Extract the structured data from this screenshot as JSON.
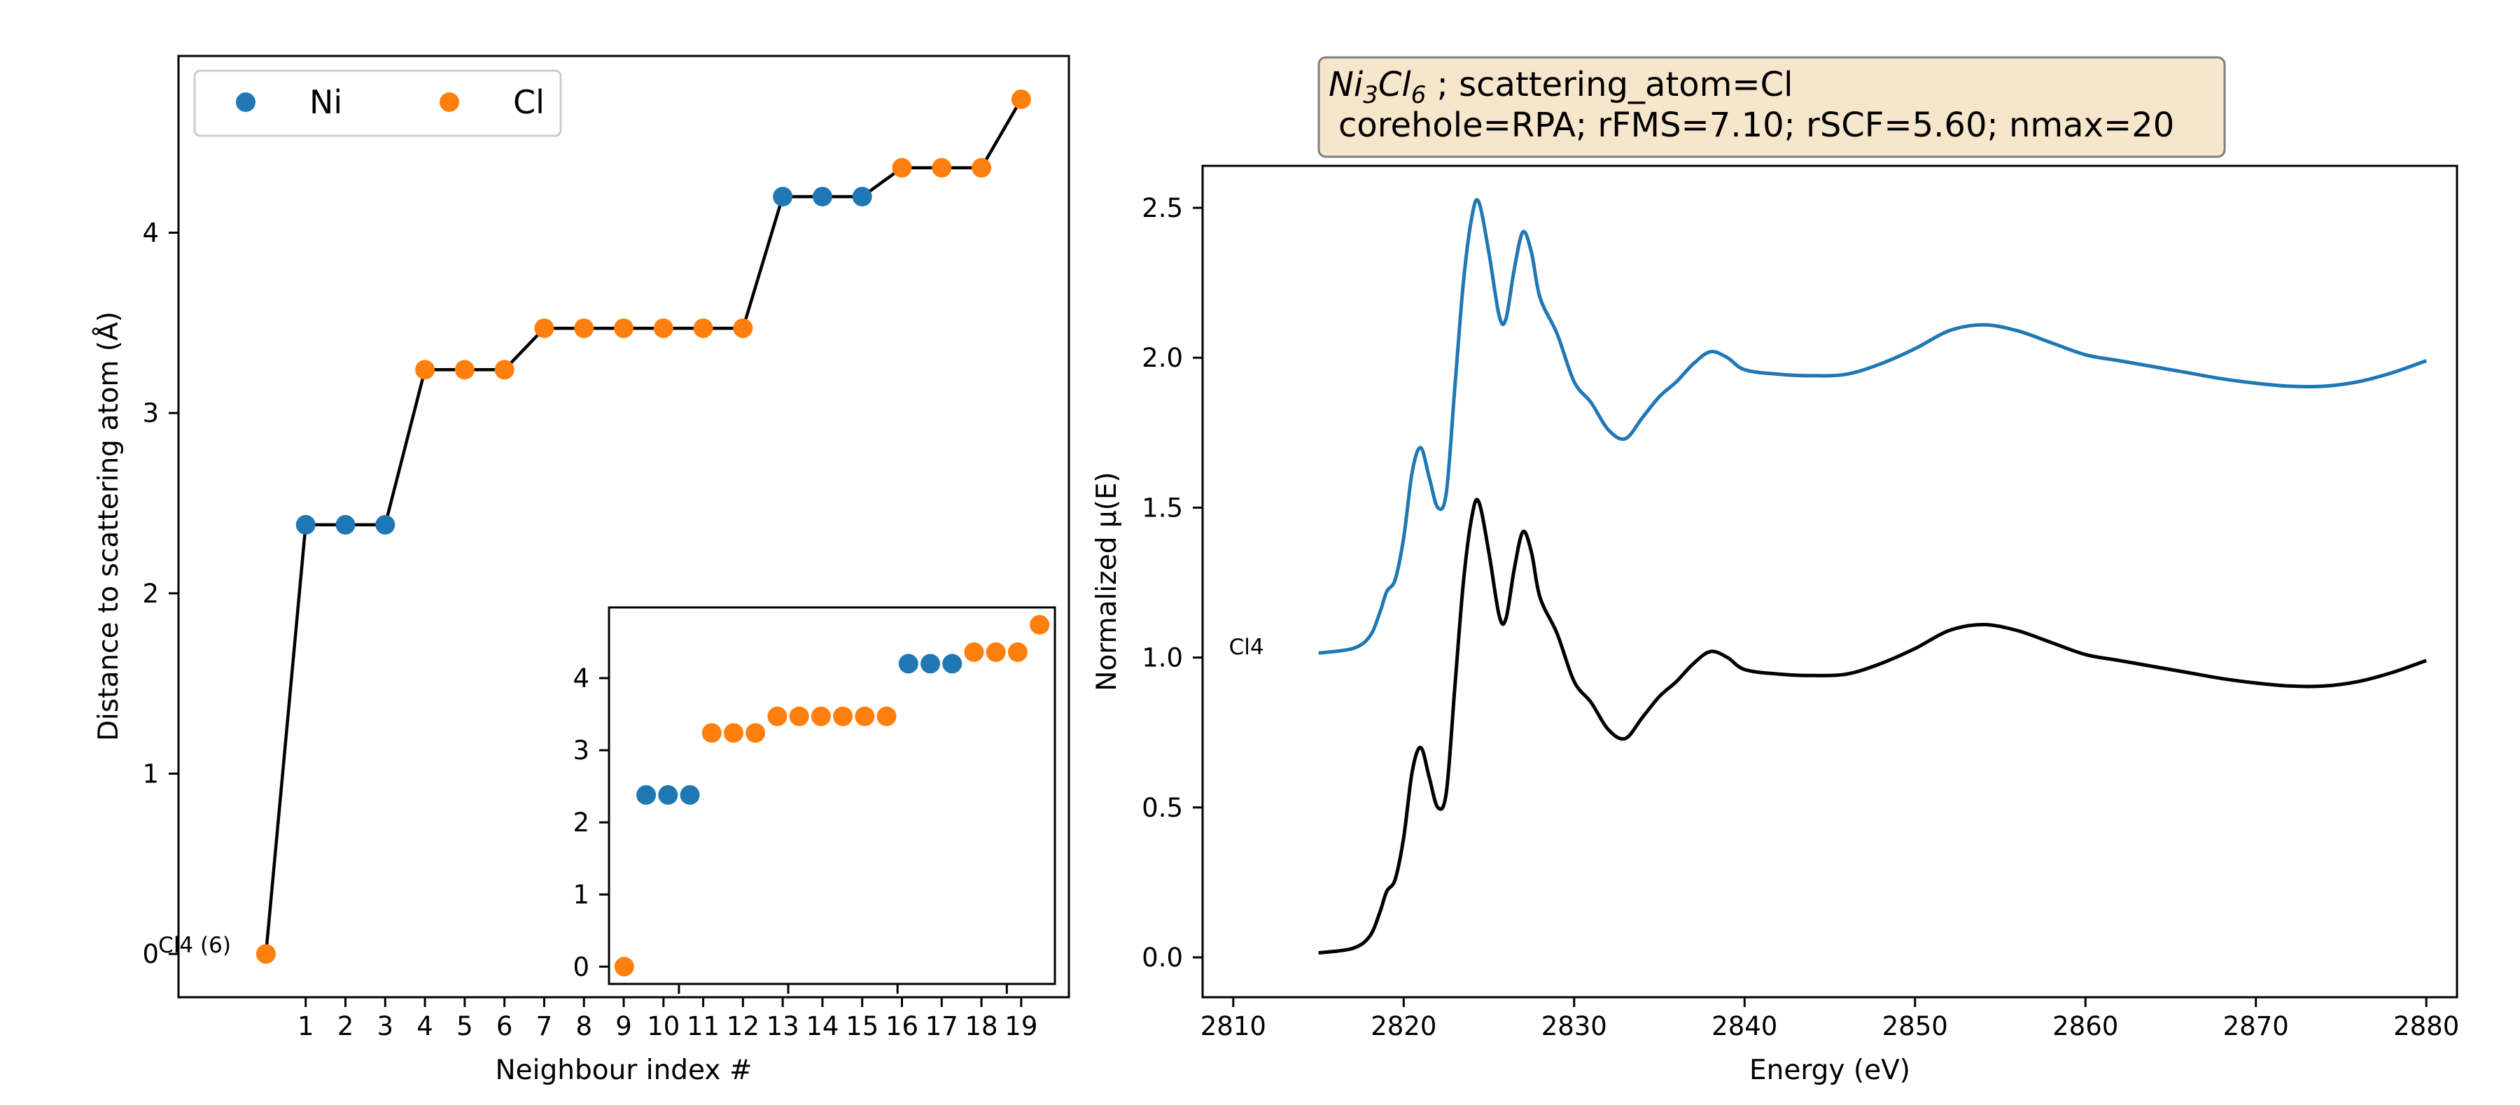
{
  "colors": {
    "ni": "#1f77b4",
    "cl": "#ff7f0e",
    "line": "#000000",
    "title_box_fill": "#f5e6cc",
    "title_box_edge": "#7f7f7f"
  },
  "chart_data": [
    {
      "type": "scatter",
      "xlabel": "Neighbour index #",
      "ylabel": "Distance to scattering atom (Å)",
      "xlim": [
        -2.2,
        20.2
      ],
      "ylim": [
        -0.24,
        4.98
      ],
      "xticks": [
        1,
        2,
        3,
        4,
        5,
        6,
        7,
        8,
        9,
        10,
        11,
        12,
        13,
        14,
        15,
        16,
        17,
        18,
        19
      ],
      "yticks": [
        0,
        1,
        2,
        3,
        4
      ],
      "legend": {
        "position": "top-left",
        "entries": [
          {
            "label": "Ni",
            "color": "#1f77b4"
          },
          {
            "label": "Cl",
            "color": "#ff7f0e"
          }
        ]
      },
      "annotation": {
        "text": "Cl4 (6)",
        "x": 0,
        "y": 0
      },
      "points": [
        {
          "x": 0,
          "y": 0.0,
          "element": "Cl"
        },
        {
          "x": 1,
          "y": 2.38,
          "element": "Ni"
        },
        {
          "x": 2,
          "y": 2.38,
          "element": "Ni"
        },
        {
          "x": 3,
          "y": 2.38,
          "element": "Ni"
        },
        {
          "x": 4,
          "y": 3.24,
          "element": "Cl"
        },
        {
          "x": 5,
          "y": 3.24,
          "element": "Cl"
        },
        {
          "x": 6,
          "y": 3.24,
          "element": "Cl"
        },
        {
          "x": 7,
          "y": 3.47,
          "element": "Cl"
        },
        {
          "x": 8,
          "y": 3.47,
          "element": "Cl"
        },
        {
          "x": 9,
          "y": 3.47,
          "element": "Cl"
        },
        {
          "x": 10,
          "y": 3.47,
          "element": "Cl"
        },
        {
          "x": 11,
          "y": 3.47,
          "element": "Cl"
        },
        {
          "x": 12,
          "y": 3.47,
          "element": "Cl"
        },
        {
          "x": 13,
          "y": 4.2,
          "element": "Ni"
        },
        {
          "x": 14,
          "y": 4.2,
          "element": "Ni"
        },
        {
          "x": 15,
          "y": 4.2,
          "element": "Ni"
        },
        {
          "x": 16,
          "y": 4.36,
          "element": "Cl"
        },
        {
          "x": 17,
          "y": 4.36,
          "element": "Cl"
        },
        {
          "x": 18,
          "y": 4.36,
          "element": "Cl"
        },
        {
          "x": 19,
          "y": 4.74,
          "element": "Cl"
        }
      ]
    },
    {
      "type": "scatter",
      "inset": true,
      "xlim": [
        -0.7,
        19.7
      ],
      "ylim": [
        -0.24,
        4.98
      ],
      "yticks": [
        0,
        1,
        2,
        3,
        4
      ],
      "points": [
        {
          "x": 0,
          "y": 0.0,
          "element": "Cl"
        },
        {
          "x": 1,
          "y": 2.38,
          "element": "Ni"
        },
        {
          "x": 2,
          "y": 2.38,
          "element": "Ni"
        },
        {
          "x": 3,
          "y": 2.38,
          "element": "Ni"
        },
        {
          "x": 4,
          "y": 3.24,
          "element": "Cl"
        },
        {
          "x": 5,
          "y": 3.24,
          "element": "Cl"
        },
        {
          "x": 6,
          "y": 3.24,
          "element": "Cl"
        },
        {
          "x": 7,
          "y": 3.47,
          "element": "Cl"
        },
        {
          "x": 8,
          "y": 3.47,
          "element": "Cl"
        },
        {
          "x": 9,
          "y": 3.47,
          "element": "Cl"
        },
        {
          "x": 10,
          "y": 3.47,
          "element": "Cl"
        },
        {
          "x": 11,
          "y": 3.47,
          "element": "Cl"
        },
        {
          "x": 12,
          "y": 3.47,
          "element": "Cl"
        },
        {
          "x": 13,
          "y": 4.2,
          "element": "Ni"
        },
        {
          "x": 14,
          "y": 4.2,
          "element": "Ni"
        },
        {
          "x": 15,
          "y": 4.2,
          "element": "Ni"
        },
        {
          "x": 16,
          "y": 4.36,
          "element": "Cl"
        },
        {
          "x": 17,
          "y": 4.36,
          "element": "Cl"
        },
        {
          "x": 18,
          "y": 4.36,
          "element": "Cl"
        },
        {
          "x": 19,
          "y": 4.74,
          "element": "Cl"
        }
      ]
    },
    {
      "type": "line",
      "title_formula": {
        "base1": "Ni",
        "sub1": "3",
        "base2": "Cl",
        "sub2": "6"
      },
      "title_line1_rest": " ; scattering_atom=Cl",
      "title_line2": "corehole=RPA; rFMS=7.10; rSCF=5.60; nmax=20",
      "xlabel": "Energy (eV)",
      "ylabel": "Normalized μ(E)",
      "xlim": [
        2808.2,
        2881.8
      ],
      "ylim": [
        -0.133,
        2.64
      ],
      "xticks": [
        2810,
        2820,
        2830,
        2840,
        2850,
        2860,
        2870,
        2880
      ],
      "yticks": [
        0.0,
        0.5,
        1.0,
        1.5,
        2.0,
        2.5
      ],
      "ytick_labels": [
        "0.0",
        "0.5",
        "1.0",
        "1.5",
        "2.0",
        "2.5"
      ],
      "series_label": {
        "text": "Cl4"
      },
      "series": [
        {
          "offset": 1.0,
          "color": "#1f77b4",
          "points": [
            [
              2815,
              0.015
            ],
            [
              2817,
              0.03
            ],
            [
              2818,
              0.07
            ],
            [
              2818.6,
              0.15
            ],
            [
              2819,
              0.22
            ],
            [
              2819.5,
              0.26
            ],
            [
              2820,
              0.4
            ],
            [
              2820.5,
              0.62
            ],
            [
              2821,
              0.7
            ],
            [
              2821.5,
              0.6
            ],
            [
              2822,
              0.5
            ],
            [
              2822.5,
              0.55
            ],
            [
              2823,
              0.9
            ],
            [
              2823.5,
              1.25
            ],
            [
              2824,
              1.47
            ],
            [
              2824.4,
              1.52
            ],
            [
              2825,
              1.35
            ],
            [
              2825.6,
              1.14
            ],
            [
              2826,
              1.13
            ],
            [
              2826.5,
              1.3
            ],
            [
              2827,
              1.42
            ],
            [
              2827.5,
              1.35
            ],
            [
              2828,
              1.2
            ],
            [
              2829,
              1.08
            ],
            [
              2830,
              0.92
            ],
            [
              2831,
              0.85
            ],
            [
              2832,
              0.76
            ],
            [
              2833,
              0.73
            ],
            [
              2834,
              0.8
            ],
            [
              2835,
              0.87
            ],
            [
              2836,
              0.92
            ],
            [
              2837,
              0.98
            ],
            [
              2838,
              1.02
            ],
            [
              2839,
              1.0
            ],
            [
              2840,
              0.96
            ],
            [
              2842,
              0.945
            ],
            [
              2844,
              0.94
            ],
            [
              2846,
              0.945
            ],
            [
              2848,
              0.98
            ],
            [
              2850,
              1.03
            ],
            [
              2852,
              1.09
            ],
            [
              2854,
              1.11
            ],
            [
              2856,
              1.09
            ],
            [
              2858,
              1.05
            ],
            [
              2860,
              1.01
            ],
            [
              2862,
              0.99
            ],
            [
              2864,
              0.97
            ],
            [
              2866,
              0.95
            ],
            [
              2868,
              0.93
            ],
            [
              2870,
              0.915
            ],
            [
              2872,
              0.905
            ],
            [
              2874,
              0.905
            ],
            [
              2876,
              0.92
            ],
            [
              2878,
              0.95
            ],
            [
              2880,
              0.99
            ]
          ]
        },
        {
          "offset": 0.0,
          "color": "#000000",
          "points": [
            [
              2815,
              0.015
            ],
            [
              2817,
              0.03
            ],
            [
              2818,
              0.07
            ],
            [
              2818.6,
              0.15
            ],
            [
              2819,
              0.22
            ],
            [
              2819.5,
              0.26
            ],
            [
              2820,
              0.4
            ],
            [
              2820.5,
              0.62
            ],
            [
              2821,
              0.7
            ],
            [
              2821.5,
              0.6
            ],
            [
              2822,
              0.5
            ],
            [
              2822.5,
              0.55
            ],
            [
              2823,
              0.9
            ],
            [
              2823.5,
              1.25
            ],
            [
              2824,
              1.47
            ],
            [
              2824.4,
              1.52
            ],
            [
              2825,
              1.35
            ],
            [
              2825.6,
              1.14
            ],
            [
              2826,
              1.13
            ],
            [
              2826.5,
              1.3
            ],
            [
              2827,
              1.42
            ],
            [
              2827.5,
              1.35
            ],
            [
              2828,
              1.2
            ],
            [
              2829,
              1.08
            ],
            [
              2830,
              0.92
            ],
            [
              2831,
              0.85
            ],
            [
              2832,
              0.76
            ],
            [
              2833,
              0.73
            ],
            [
              2834,
              0.8
            ],
            [
              2835,
              0.87
            ],
            [
              2836,
              0.92
            ],
            [
              2837,
              0.98
            ],
            [
              2838,
              1.02
            ],
            [
              2839,
              1.0
            ],
            [
              2840,
              0.96
            ],
            [
              2842,
              0.945
            ],
            [
              2844,
              0.94
            ],
            [
              2846,
              0.945
            ],
            [
              2848,
              0.98
            ],
            [
              2850,
              1.03
            ],
            [
              2852,
              1.09
            ],
            [
              2854,
              1.11
            ],
            [
              2856,
              1.09
            ],
            [
              2858,
              1.05
            ],
            [
              2860,
              1.01
            ],
            [
              2862,
              0.99
            ],
            [
              2864,
              0.97
            ],
            [
              2866,
              0.95
            ],
            [
              2868,
              0.93
            ],
            [
              2870,
              0.915
            ],
            [
              2872,
              0.905
            ],
            [
              2874,
              0.905
            ],
            [
              2876,
              0.92
            ],
            [
              2878,
              0.95
            ],
            [
              2880,
              0.99
            ]
          ]
        }
      ]
    }
  ]
}
